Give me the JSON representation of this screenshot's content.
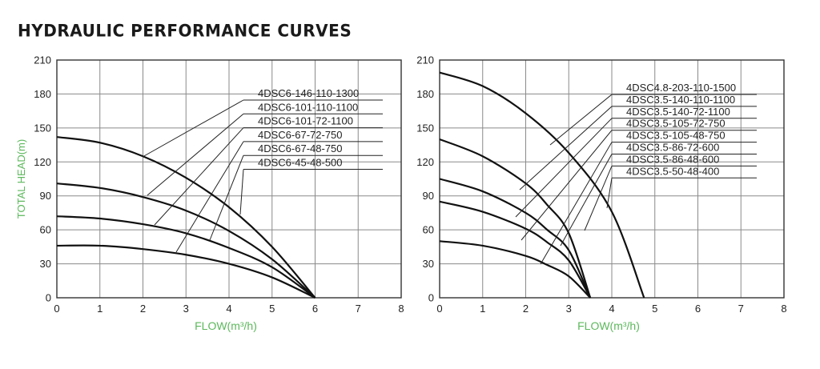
{
  "page": {
    "title": "HYDRAULIC PERFORMANCE CURVES"
  },
  "colors": {
    "axis_label": "#5cb85c",
    "grid": "#8a8a8a",
    "curve": "#111111",
    "text": "#222222"
  },
  "chart_data": [
    {
      "type": "line",
      "xlabel": "FLOW(m³/h)",
      "ylabel": "TOTAL HEAD(m)",
      "xlim": [
        0,
        8
      ],
      "ylim": [
        0,
        210
      ],
      "xticks": [
        0,
        1,
        2,
        3,
        4,
        5,
        6,
        7,
        8
      ],
      "yticks": [
        0,
        30,
        60,
        90,
        120,
        150,
        180,
        210
      ],
      "grid": true,
      "legend_placement": "top-right, labels with leader lines",
      "series": [
        {
          "name": "4DSC6-146-110-1300",
          "points": [
            [
              0,
              142
            ],
            [
              1,
              137
            ],
            [
              2,
              125
            ],
            [
              3,
              106
            ],
            [
              4,
              80
            ],
            [
              5,
              45
            ],
            [
              6,
              0
            ]
          ]
        },
        {
          "name": "4DSC6-101-110-1100",
          "points": [
            [
              0,
              101
            ],
            [
              1,
              97
            ],
            [
              2,
              89
            ],
            [
              3,
              77
            ],
            [
              4,
              59
            ],
            [
              5,
              34
            ],
            [
              6,
              0
            ]
          ]
        },
        {
          "name": "4DSC6-101-72-1100",
          "points": [
            [
              0,
              72
            ],
            [
              1,
              70
            ],
            [
              2,
              65
            ],
            [
              3,
              57
            ],
            [
              4,
              44
            ],
            [
              5,
              27
            ],
            [
              6,
              0
            ]
          ]
        },
        {
          "name": "4DSC6-67-72-750",
          "points": [
            [
              0,
              46
            ],
            [
              1,
              46
            ],
            [
              2,
              43
            ],
            [
              3,
              38
            ],
            [
              4,
              30
            ],
            [
              5,
              18
            ],
            [
              6,
              0
            ]
          ]
        },
        {
          "name": "4DSC6-67-48-750",
          "points": []
        },
        {
          "name": "4DSC6-45-48-500",
          "points": []
        }
      ]
    },
    {
      "type": "line",
      "xlabel": "FLOW(m³/h)",
      "ylabel": "",
      "xlim": [
        0,
        8
      ],
      "ylim": [
        0,
        210
      ],
      "xticks": [
        0,
        1,
        2,
        3,
        4,
        5,
        6,
        7,
        8
      ],
      "yticks": [
        0,
        30,
        60,
        90,
        120,
        150,
        180,
        210
      ],
      "grid": true,
      "legend_placement": "top-right, labels with leader lines",
      "series": [
        {
          "name": "4DSC4.8-203-110-1500",
          "points": [
            [
              0,
              199
            ],
            [
              1,
              187
            ],
            [
              2,
              163
            ],
            [
              3,
              128
            ],
            [
              4,
              76
            ],
            [
              4.75,
              0
            ]
          ]
        },
        {
          "name": "4DSC3.5-140-110-1100",
          "points": [
            [
              0,
              140
            ],
            [
              1,
              125
            ],
            [
              2,
              101
            ],
            [
              2.5,
              82
            ],
            [
              3,
              57
            ],
            [
              3.5,
              0
            ]
          ]
        },
        {
          "name": "4DSC3.5-140-72-1100",
          "points": [
            [
              0,
              105
            ],
            [
              1,
              94
            ],
            [
              2,
              75
            ],
            [
              2.5,
              60
            ],
            [
              3,
              42
            ],
            [
              3.5,
              0
            ]
          ]
        },
        {
          "name": "4DSC3.5-105-72-750",
          "points": [
            [
              0,
              85
            ],
            [
              1,
              76
            ],
            [
              2,
              61
            ],
            [
              2.5,
              49
            ],
            [
              3,
              33
            ],
            [
              3.5,
              0
            ]
          ]
        },
        {
          "name": "4DSC3.5-105-48-750",
          "points": [
            [
              0,
              50
            ],
            [
              1,
              46
            ],
            [
              2,
              37
            ],
            [
              2.5,
              29
            ],
            [
              3,
              19
            ],
            [
              3.5,
              0
            ]
          ]
        },
        {
          "name": "4DSC3.5-86-72-600",
          "points": []
        },
        {
          "name": "4DSC3.5-86-48-600",
          "points": []
        },
        {
          "name": "4DSC3.5-50-48-400",
          "points": []
        }
      ]
    }
  ]
}
